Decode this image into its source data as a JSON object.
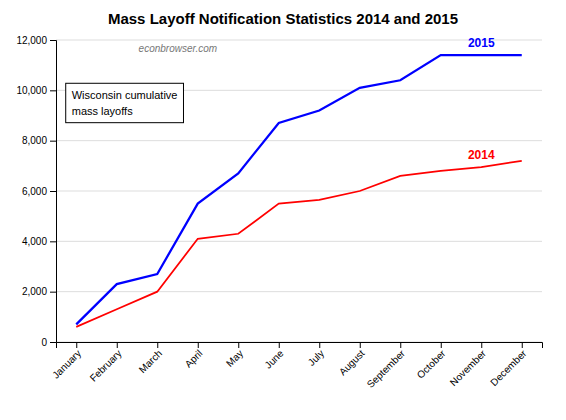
{
  "chart_data": {
    "type": "line",
    "title": "Mass Layoff Notification Statistics 2014 and 2015",
    "categories": [
      "January",
      "February",
      "March",
      "April",
      "May",
      "June",
      "July",
      "August",
      "September",
      "October",
      "November",
      "December"
    ],
    "series": [
      {
        "name": "2015",
        "color": "#0000FF",
        "values": [
          700,
          2300,
          2700,
          5500,
          6700,
          8700,
          9200,
          10100,
          10400,
          11400,
          11400,
          11400
        ]
      },
      {
        "name": "2014",
        "color": "#FF0000",
        "values": [
          600,
          1300,
          2000,
          4100,
          4300,
          5500,
          5650,
          6000,
          6600,
          6800,
          6950,
          7200
        ]
      }
    ],
    "ylim": [
      0,
      12000
    ],
    "yticks": [
      0,
      {
        "value": 2000,
        "label": "2,000"
      },
      {
        "value": 4000,
        "label": "4,000"
      },
      {
        "value": 6000,
        "label": "6,000"
      },
      {
        "value": 8000,
        "label": "8,000"
      },
      {
        "value": 10000,
        "label": "10,000"
      },
      {
        "value": 12000,
        "label": "12,000"
      }
    ],
    "annotations": [
      "econbrowser.com",
      "Wisconsin cumulative\nmass layoffs"
    ],
    "grid": true
  }
}
